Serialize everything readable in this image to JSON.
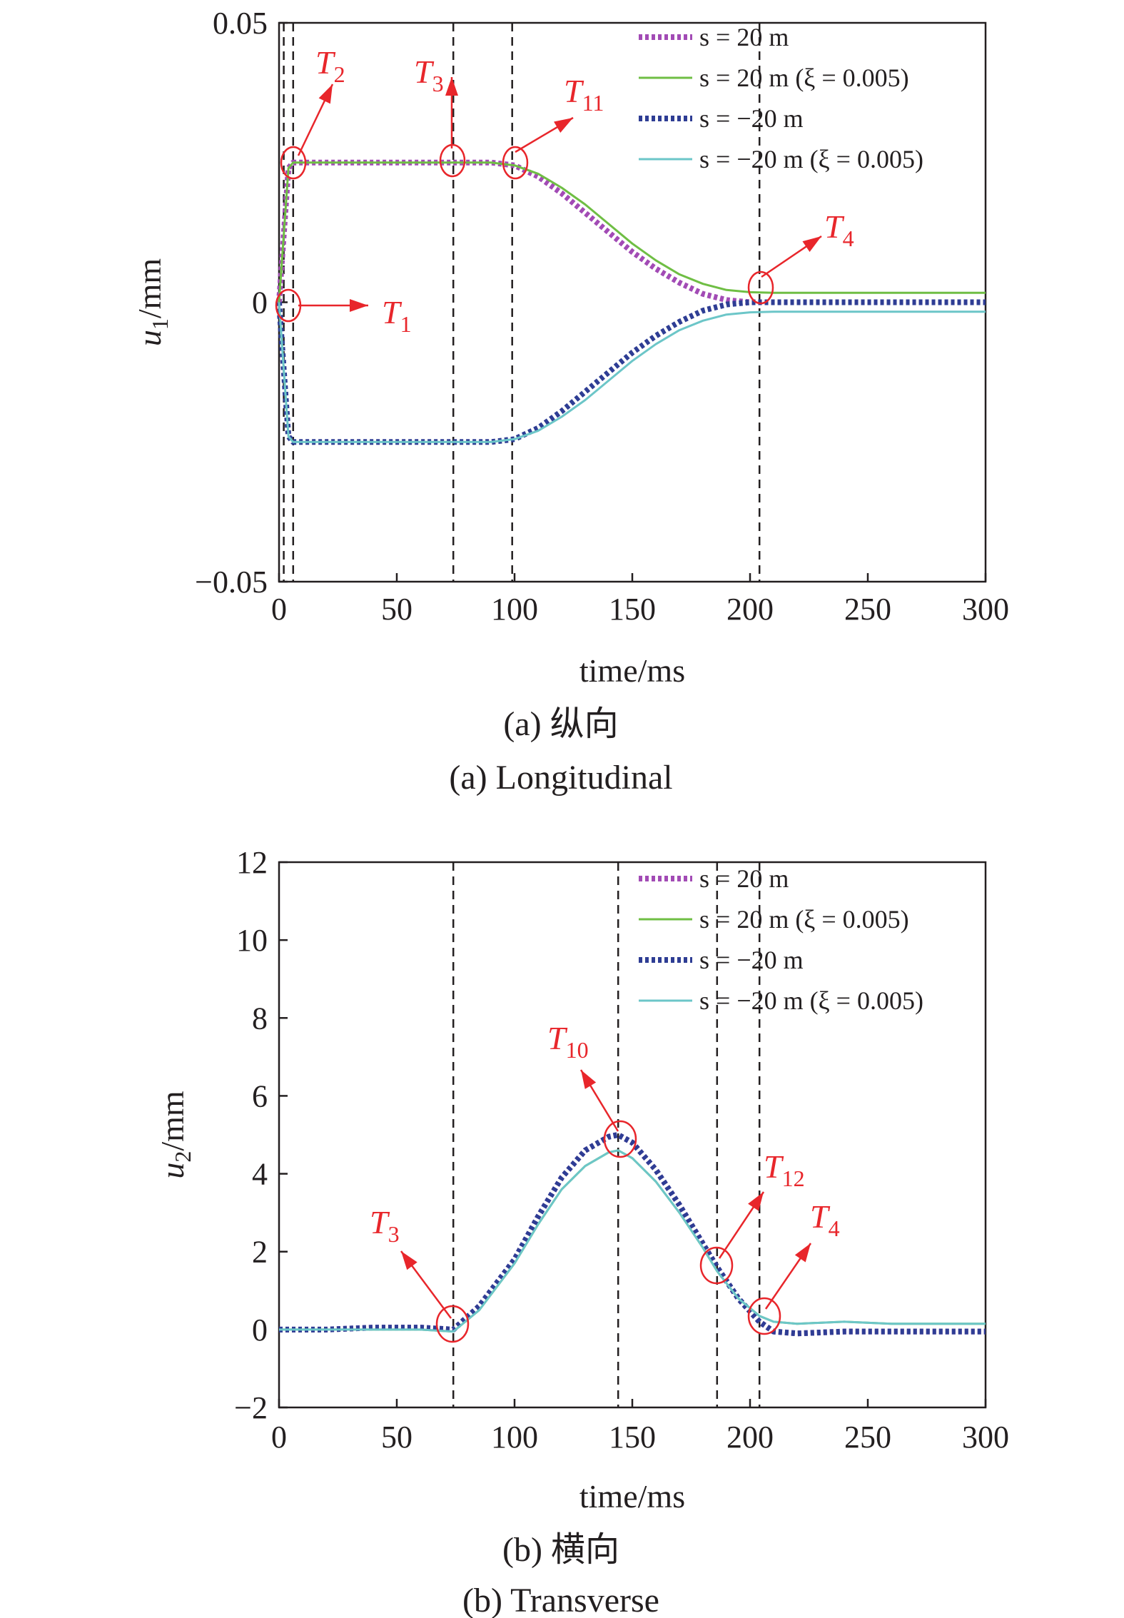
{
  "chart_data": [
    {
      "type": "line",
      "id": "a",
      "ylabel": "u",
      "ylabel_sub": "1",
      "ylabel_unit": "/mm",
      "xlabel": "time/ms",
      "caption_zh": "(a) 纵向",
      "caption_en": "(a) Longitudinal",
      "xlim": [
        0,
        300
      ],
      "ylim": [
        -0.05,
        0.05
      ],
      "xticks": [
        "0",
        "50",
        "100",
        "150",
        "200",
        "250",
        "300"
      ],
      "yticks": [
        {
          "value": 0.05,
          "label": "0.05"
        },
        {
          "value": 0,
          "label": "0"
        },
        {
          "value": -0.05,
          "label": "−0.05"
        }
      ],
      "vlines": [
        2,
        6,
        74,
        99,
        204
      ],
      "legend_position": "top-right",
      "x": [
        0,
        2,
        4,
        6,
        10,
        74,
        90,
        100,
        110,
        120,
        130,
        140,
        150,
        160,
        170,
        180,
        190,
        200,
        210,
        220,
        300
      ],
      "series": [
        {
          "name": "s = 20 m",
          "style": "dotted",
          "color": "#a24bb5",
          "values": [
            0,
            0.012,
            0.024,
            0.025,
            0.025,
            0.025,
            0.025,
            0.0245,
            0.0225,
            0.0195,
            0.016,
            0.0125,
            0.009,
            0.006,
            0.0035,
            0.0015,
            0.0004,
            0.0,
            0.0,
            0.0,
            0.0
          ]
        },
        {
          "name": "s = 20 m (ξ = 0.005)",
          "style": "solid",
          "color": "#6fbe44",
          "values": [
            0,
            0.012,
            0.024,
            0.025,
            0.025,
            0.025,
            0.025,
            0.0245,
            0.023,
            0.0205,
            0.0175,
            0.014,
            0.0105,
            0.0075,
            0.005,
            0.0033,
            0.0022,
            0.0018,
            0.0017,
            0.0017,
            0.0017
          ]
        },
        {
          "name": "s = −20 m",
          "style": "dotted",
          "color": "#2e3d94",
          "values": [
            0,
            -0.012,
            -0.024,
            -0.025,
            -0.025,
            -0.025,
            -0.025,
            -0.0245,
            -0.0225,
            -0.0195,
            -0.016,
            -0.0125,
            -0.009,
            -0.006,
            -0.0035,
            -0.0015,
            -0.0004,
            0.0,
            0.0,
            0.0,
            0.0
          ]
        },
        {
          "name": "s = −20 m (ξ = 0.005)",
          "style": "solid",
          "color": "#6cc6c8",
          "values": [
            0,
            -0.012,
            -0.024,
            -0.025,
            -0.025,
            -0.025,
            -0.025,
            -0.0245,
            -0.023,
            -0.0205,
            -0.0175,
            -0.014,
            -0.0105,
            -0.0075,
            -0.005,
            -0.0033,
            -0.0022,
            -0.0018,
            -0.0017,
            -0.0017,
            -0.0017
          ]
        }
      ],
      "annotations": [
        {
          "label": "T",
          "sub": "1",
          "at": [
            2,
            0
          ]
        },
        {
          "label": "T",
          "sub": "2",
          "at": [
            6,
            0.025
          ]
        },
        {
          "label": "T",
          "sub": "3",
          "at": [
            74,
            0.025
          ]
        },
        {
          "label": "T",
          "sub": "11",
          "at": [
            99,
            0.025
          ]
        },
        {
          "label": "T",
          "sub": "4",
          "at": [
            204,
            0.0017
          ]
        }
      ]
    },
    {
      "type": "line",
      "id": "b",
      "ylabel": "u",
      "ylabel_sub": "2",
      "ylabel_unit": "/mm",
      "xlabel": "time/ms",
      "caption_zh": "(b) 横向",
      "caption_en": "(b) Transverse",
      "xlim": [
        0,
        300
      ],
      "ylim": [
        -2,
        12
      ],
      "xticks": [
        "0",
        "50",
        "100",
        "150",
        "200",
        "250",
        "300"
      ],
      "yticks": [
        {
          "value": 12,
          "label": "12"
        },
        {
          "value": 10,
          "label": "10"
        },
        {
          "value": 8,
          "label": "8"
        },
        {
          "value": 6,
          "label": "6"
        },
        {
          "value": 4,
          "label": "4"
        },
        {
          "value": 2,
          "label": "2"
        },
        {
          "value": 0,
          "label": "0"
        },
        {
          "value": -2,
          "label": "−2"
        }
      ],
      "vlines": [
        74,
        144,
        186,
        204
      ],
      "legend_position": "top-right",
      "x": [
        0,
        20,
        40,
        60,
        74,
        85,
        100,
        110,
        120,
        130,
        140,
        144,
        150,
        160,
        170,
        180,
        186,
        195,
        204,
        210,
        220,
        240,
        260,
        280,
        300
      ],
      "series": [
        {
          "name": "s = 20 m",
          "style": "dotted",
          "color": "#a24bb5",
          "values": [
            0.0,
            0.0,
            0.05,
            0.05,
            0.0,
            0.6,
            1.8,
            2.9,
            3.9,
            4.6,
            4.95,
            5.0,
            4.8,
            4.1,
            3.2,
            2.2,
            1.6,
            0.8,
            0.2,
            -0.05,
            -0.1,
            -0.05,
            -0.05,
            -0.05,
            -0.05
          ]
        },
        {
          "name": "s = 20 m (ξ = 0.005)",
          "style": "solid",
          "color": "#6fbe44",
          "values": [
            0.0,
            0.0,
            0.0,
            0.0,
            -0.05,
            0.5,
            1.7,
            2.7,
            3.6,
            4.2,
            4.55,
            4.6,
            4.4,
            3.8,
            3.0,
            2.1,
            1.5,
            0.8,
            0.35,
            0.2,
            0.15,
            0.2,
            0.15,
            0.15,
            0.15
          ]
        },
        {
          "name": "s = −20 m",
          "style": "dotted",
          "color": "#2e3d94",
          "values": [
            0.0,
            0.0,
            0.05,
            0.05,
            0.0,
            0.6,
            1.8,
            2.9,
            3.9,
            4.6,
            4.95,
            5.0,
            4.8,
            4.1,
            3.2,
            2.2,
            1.6,
            0.8,
            0.2,
            -0.05,
            -0.1,
            -0.05,
            -0.05,
            -0.05,
            -0.05
          ]
        },
        {
          "name": "s = −20 m (ξ = 0.005)",
          "style": "solid",
          "color": "#6cc6c8",
          "values": [
            0.0,
            0.0,
            0.0,
            0.0,
            -0.05,
            0.5,
            1.7,
            2.7,
            3.6,
            4.2,
            4.55,
            4.6,
            4.4,
            3.8,
            3.0,
            2.1,
            1.5,
            0.8,
            0.35,
            0.2,
            0.15,
            0.2,
            0.15,
            0.15,
            0.15
          ]
        }
      ],
      "annotations": [
        {
          "label": "T",
          "sub": "3",
          "at": [
            74,
            0.1
          ]
        },
        {
          "label": "T",
          "sub": "10",
          "at": [
            144,
            4.9
          ]
        },
        {
          "label": "T",
          "sub": "12",
          "at": [
            186,
            1.6
          ]
        },
        {
          "label": "T",
          "sub": "4",
          "at": [
            206,
            0.35
          ]
        }
      ]
    }
  ],
  "colors": {
    "annotation": "#e8262b",
    "axis": "#231f20",
    "purple": "#a24bb5",
    "green": "#6fbe44",
    "navy": "#2e3d94",
    "cyan": "#6cc6c8"
  }
}
